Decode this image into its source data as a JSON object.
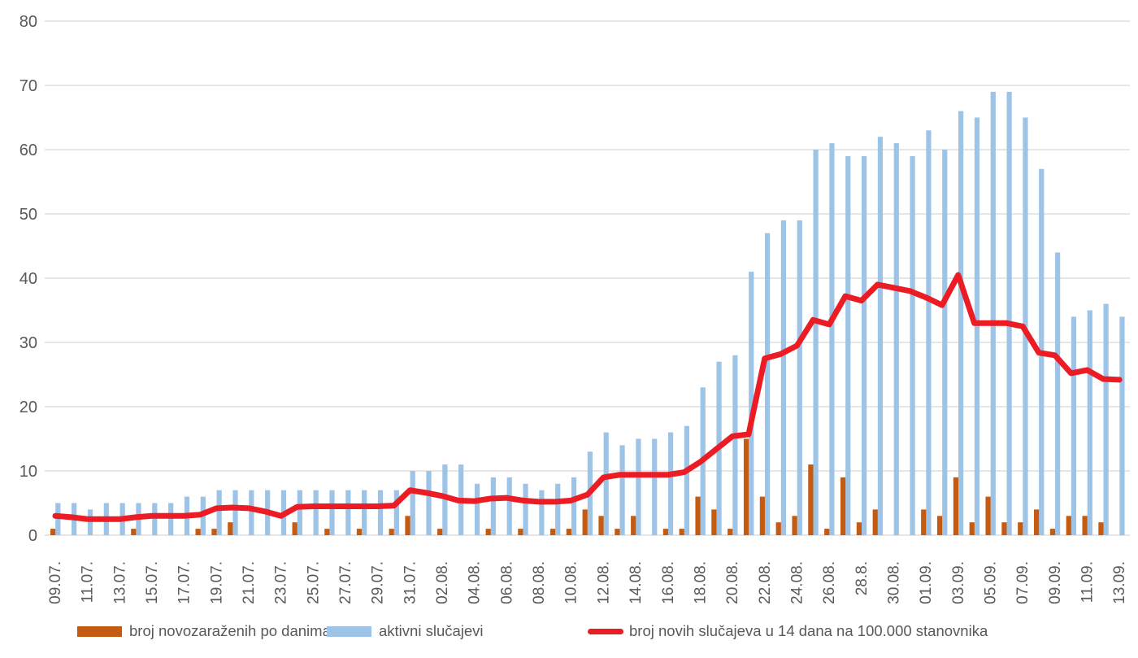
{
  "chart_data": {
    "type": "combo",
    "categories": [
      "09.07.",
      "10.07.",
      "11.07.",
      "12.07.",
      "13.07.",
      "14.07.",
      "15.07.",
      "16.07.",
      "17.07.",
      "18.07.",
      "19.07.",
      "20.07.",
      "21.07.",
      "22.07.",
      "23.07.",
      "24.07.",
      "25.07.",
      "26.07.",
      "27.07.",
      "28.07.",
      "29.07.",
      "30.07.",
      "31.07.",
      "01.08.",
      "02.08.",
      "03.08.",
      "04.08.",
      "05.08.",
      "06.08.",
      "07.08.",
      "08.08.",
      "09.08.",
      "10.08.",
      "11.08.",
      "12.08.",
      "13.08.",
      "14.08.",
      "15.08.",
      "16.08.",
      "17.08.",
      "18.08.",
      "19.08.",
      "20.08.",
      "21.08.",
      "22.08.",
      "23.08.",
      "24.08.",
      "25.08.",
      "26.08.",
      "27.08.",
      "28.8.",
      "29.08.",
      "30.08.",
      "31.08.",
      "01.09.",
      "02.09.",
      "03.09.",
      "04.09.",
      "05.09.",
      "06.09.",
      "07.09.",
      "08.09.",
      "09.09.",
      "10.09.",
      "11.09.",
      "12.09.",
      "13.09."
    ],
    "x_label_every": 2,
    "series": [
      {
        "name": "broj novozaraženih po danima",
        "type": "bar",
        "color": "#C55A11",
        "values": [
          1,
          0,
          0,
          0,
          0,
          1,
          0,
          0,
          0,
          1,
          1,
          2,
          0,
          0,
          0,
          2,
          0,
          1,
          0,
          1,
          0,
          1,
          3,
          0,
          1,
          0,
          0,
          1,
          0,
          1,
          0,
          1,
          1,
          4,
          3,
          1,
          3,
          0,
          1,
          1,
          6,
          4,
          1,
          15,
          6,
          2,
          3,
          11,
          1,
          9,
          2,
          4,
          0,
          0,
          4,
          3,
          9,
          2,
          6,
          2,
          2,
          4,
          1,
          3,
          3,
          2,
          0
        ]
      },
      {
        "name": "aktivni slučajevi",
        "type": "bar",
        "color": "#9DC3E6",
        "values": [
          5,
          5,
          4,
          5,
          5,
          5,
          5,
          5,
          6,
          6,
          7,
          7,
          7,
          7,
          7,
          7,
          7,
          7,
          7,
          7,
          7,
          7,
          10,
          10,
          11,
          11,
          8,
          9,
          9,
          8,
          7,
          8,
          9,
          13,
          16,
          14,
          15,
          15,
          16,
          17,
          23,
          27,
          28,
          41,
          47,
          49,
          49,
          60,
          61,
          59,
          59,
          62,
          61,
          59,
          63,
          60,
          66,
          65,
          69,
          69,
          65,
          57,
          44,
          34,
          35,
          36,
          34
        ]
      },
      {
        "name": "broj novih slučajeva u 14 dana na 100.000 stanovnika",
        "type": "line",
        "color": "#EC1C24",
        "values": [
          3.0,
          2.8,
          2.5,
          2.5,
          2.5,
          2.8,
          3.0,
          3.0,
          3.0,
          3.2,
          4.2,
          4.3,
          4.2,
          3.7,
          3.0,
          4.4,
          4.5,
          4.5,
          4.5,
          4.5,
          4.5,
          4.6,
          7.0,
          6.6,
          6.1,
          5.4,
          5.3,
          5.7,
          5.8,
          5.4,
          5.2,
          5.2,
          5.4,
          6.3,
          9.0,
          9.4,
          9.4,
          9.4,
          9.4,
          9.8,
          11.4,
          13.4,
          15.4,
          15.7,
          27.5,
          28.2,
          29.5,
          33.5,
          32.8,
          37.2,
          36.5,
          39.0,
          38.5,
          38.0,
          37.0,
          35.8,
          40.5,
          33.0,
          33.0,
          33.0,
          32.5,
          28.4,
          28.0,
          25.2,
          25.7,
          24.3,
          24.2
        ]
      }
    ],
    "ylim": [
      0,
      80
    ],
    "yticks": [
      "0",
      "10",
      "20",
      "30",
      "40",
      "50",
      "60",
      "70",
      "80"
    ],
    "grid": true,
    "legend_position": "bottom"
  },
  "colors": {
    "gridline": "#D6D6D6",
    "axis_text": "#595959",
    "background": "#FFFFFF"
  }
}
